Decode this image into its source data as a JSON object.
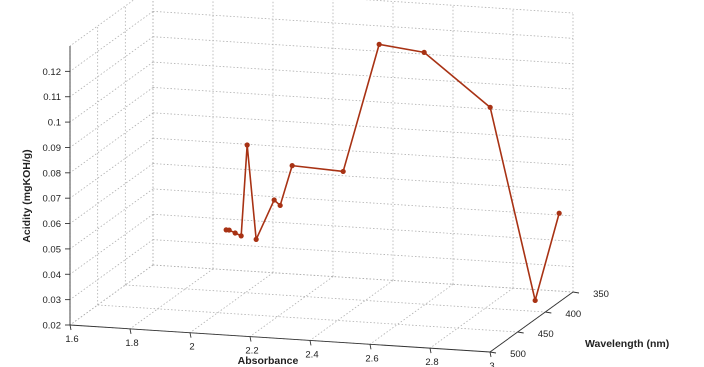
{
  "chart_data": {
    "type": "line",
    "projection": "3d",
    "series": [
      {
        "color": "#a83214",
        "points": [
          {
            "x": 1.89,
            "y": 375,
            "z": 0.04
          },
          {
            "x": 1.9,
            "y": 375,
            "z": 0.04
          },
          {
            "x": 1.92,
            "y": 375,
            "z": 0.039
          },
          {
            "x": 1.94,
            "y": 375,
            "z": 0.038
          },
          {
            "x": 1.96,
            "y": 375,
            "z": 0.074
          },
          {
            "x": 1.99,
            "y": 375,
            "z": 0.037
          },
          {
            "x": 2.05,
            "y": 375,
            "z": 0.053
          },
          {
            "x": 2.07,
            "y": 375,
            "z": 0.051
          },
          {
            "x": 2.11,
            "y": 375,
            "z": 0.067
          },
          {
            "x": 2.28,
            "y": 375,
            "z": 0.066
          },
          {
            "x": 2.4,
            "y": 375,
            "z": 0.117
          },
          {
            "x": 2.55,
            "y": 375,
            "z": 0.115
          },
          {
            "x": 2.77,
            "y": 375,
            "z": 0.095
          },
          {
            "x": 2.92,
            "y": 375,
            "z": 0.02
          },
          {
            "x": 3.0,
            "y": 375,
            "z": 0.055
          }
        ]
      }
    ],
    "xlabel": "Absorbance",
    "ylabel": "Wavelength (nm)",
    "zlabel": "Acidity (mgKOH/g)",
    "xlim": [
      1.6,
      3.0
    ],
    "ylim": [
      350,
      500
    ],
    "zlim": [
      0.02,
      0.13
    ],
    "xticks": [
      "1.6",
      "1.8",
      "2",
      "2.2",
      "2.4",
      "2.6",
      "2.8",
      "3"
    ],
    "yticks": [
      "350",
      "400",
      "450",
      "500"
    ],
    "zticks": [
      "0.02",
      "0.03",
      "0.04",
      "0.05",
      "0.06",
      "0.07",
      "0.08",
      "0.09",
      "0.1",
      "0.11",
      "0.12"
    ],
    "grid": true
  }
}
